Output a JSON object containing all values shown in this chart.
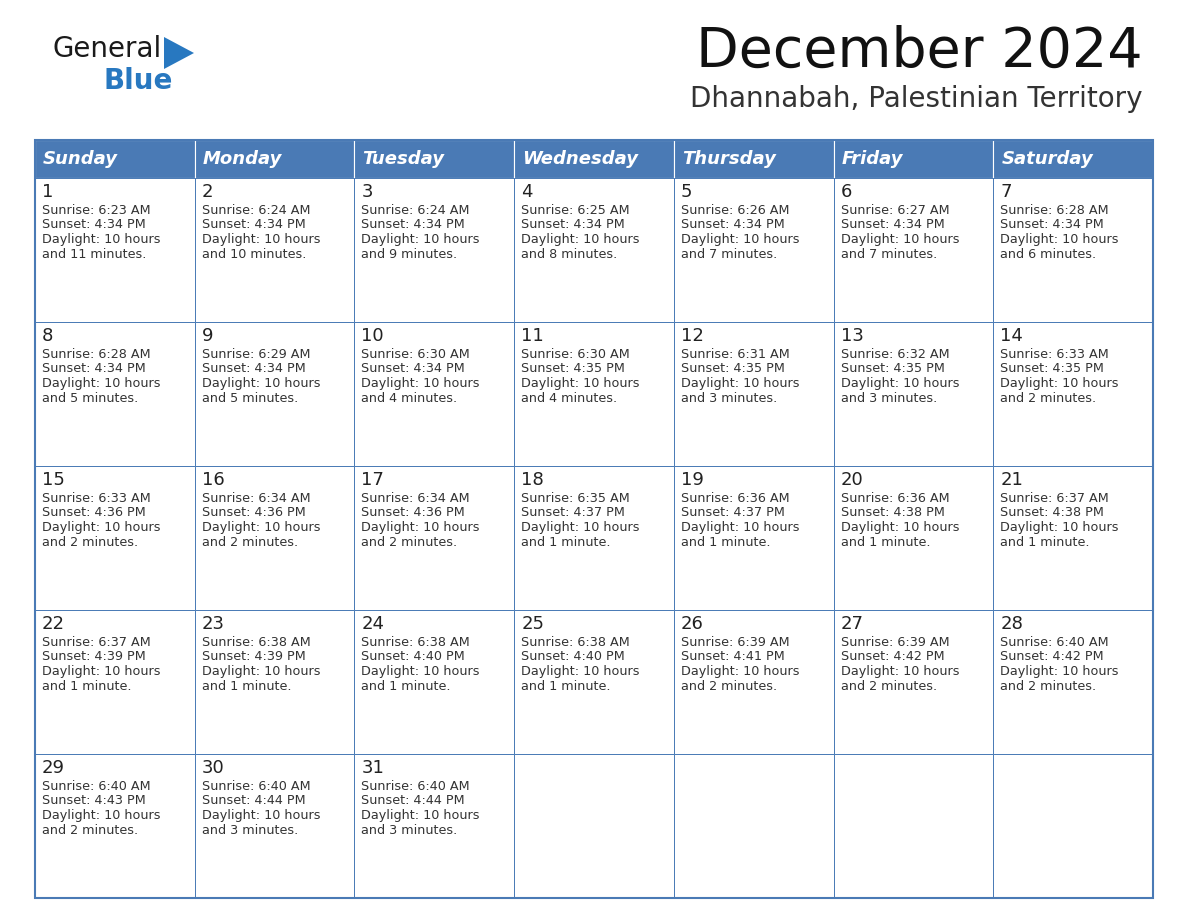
{
  "title": "December 2024",
  "subtitle": "Dhannabah, Palestinian Territory",
  "header_bg": "#4a7ab5",
  "header_text_color": "#FFFFFF",
  "cell_border_color": "#4a7ab5",
  "day_number_color": "#333333",
  "cell_text_color": "#333333",
  "background_color": "#FFFFFF",
  "days_of_week": [
    "Sunday",
    "Monday",
    "Tuesday",
    "Wednesday",
    "Thursday",
    "Friday",
    "Saturday"
  ],
  "calendar": [
    [
      {
        "day": "1",
        "sunrise": "6:23 AM",
        "sunset": "4:34 PM",
        "daylight_line1": "Daylight: 10 hours",
        "daylight_line2": "and 11 minutes."
      },
      {
        "day": "2",
        "sunrise": "6:24 AM",
        "sunset": "4:34 PM",
        "daylight_line1": "Daylight: 10 hours",
        "daylight_line2": "and 10 minutes."
      },
      {
        "day": "3",
        "sunrise": "6:24 AM",
        "sunset": "4:34 PM",
        "daylight_line1": "Daylight: 10 hours",
        "daylight_line2": "and 9 minutes."
      },
      {
        "day": "4",
        "sunrise": "6:25 AM",
        "sunset": "4:34 PM",
        "daylight_line1": "Daylight: 10 hours",
        "daylight_line2": "and 8 minutes."
      },
      {
        "day": "5",
        "sunrise": "6:26 AM",
        "sunset": "4:34 PM",
        "daylight_line1": "Daylight: 10 hours",
        "daylight_line2": "and 7 minutes."
      },
      {
        "day": "6",
        "sunrise": "6:27 AM",
        "sunset": "4:34 PM",
        "daylight_line1": "Daylight: 10 hours",
        "daylight_line2": "and 7 minutes."
      },
      {
        "day": "7",
        "sunrise": "6:28 AM",
        "sunset": "4:34 PM",
        "daylight_line1": "Daylight: 10 hours",
        "daylight_line2": "and 6 minutes."
      }
    ],
    [
      {
        "day": "8",
        "sunrise": "6:28 AM",
        "sunset": "4:34 PM",
        "daylight_line1": "Daylight: 10 hours",
        "daylight_line2": "and 5 minutes."
      },
      {
        "day": "9",
        "sunrise": "6:29 AM",
        "sunset": "4:34 PM",
        "daylight_line1": "Daylight: 10 hours",
        "daylight_line2": "and 5 minutes."
      },
      {
        "day": "10",
        "sunrise": "6:30 AM",
        "sunset": "4:34 PM",
        "daylight_line1": "Daylight: 10 hours",
        "daylight_line2": "and 4 minutes."
      },
      {
        "day": "11",
        "sunrise": "6:30 AM",
        "sunset": "4:35 PM",
        "daylight_line1": "Daylight: 10 hours",
        "daylight_line2": "and 4 minutes."
      },
      {
        "day": "12",
        "sunrise": "6:31 AM",
        "sunset": "4:35 PM",
        "daylight_line1": "Daylight: 10 hours",
        "daylight_line2": "and 3 minutes."
      },
      {
        "day": "13",
        "sunrise": "6:32 AM",
        "sunset": "4:35 PM",
        "daylight_line1": "Daylight: 10 hours",
        "daylight_line2": "and 3 minutes."
      },
      {
        "day": "14",
        "sunrise": "6:33 AM",
        "sunset": "4:35 PM",
        "daylight_line1": "Daylight: 10 hours",
        "daylight_line2": "and 2 minutes."
      }
    ],
    [
      {
        "day": "15",
        "sunrise": "6:33 AM",
        "sunset": "4:36 PM",
        "daylight_line1": "Daylight: 10 hours",
        "daylight_line2": "and 2 minutes."
      },
      {
        "day": "16",
        "sunrise": "6:34 AM",
        "sunset": "4:36 PM",
        "daylight_line1": "Daylight: 10 hours",
        "daylight_line2": "and 2 minutes."
      },
      {
        "day": "17",
        "sunrise": "6:34 AM",
        "sunset": "4:36 PM",
        "daylight_line1": "Daylight: 10 hours",
        "daylight_line2": "and 2 minutes."
      },
      {
        "day": "18",
        "sunrise": "6:35 AM",
        "sunset": "4:37 PM",
        "daylight_line1": "Daylight: 10 hours",
        "daylight_line2": "and 1 minute."
      },
      {
        "day": "19",
        "sunrise": "6:36 AM",
        "sunset": "4:37 PM",
        "daylight_line1": "Daylight: 10 hours",
        "daylight_line2": "and 1 minute."
      },
      {
        "day": "20",
        "sunrise": "6:36 AM",
        "sunset": "4:38 PM",
        "daylight_line1": "Daylight: 10 hours",
        "daylight_line2": "and 1 minute."
      },
      {
        "day": "21",
        "sunrise": "6:37 AM",
        "sunset": "4:38 PM",
        "daylight_line1": "Daylight: 10 hours",
        "daylight_line2": "and 1 minute."
      }
    ],
    [
      {
        "day": "22",
        "sunrise": "6:37 AM",
        "sunset": "4:39 PM",
        "daylight_line1": "Daylight: 10 hours",
        "daylight_line2": "and 1 minute."
      },
      {
        "day": "23",
        "sunrise": "6:38 AM",
        "sunset": "4:39 PM",
        "daylight_line1": "Daylight: 10 hours",
        "daylight_line2": "and 1 minute."
      },
      {
        "day": "24",
        "sunrise": "6:38 AM",
        "sunset": "4:40 PM",
        "daylight_line1": "Daylight: 10 hours",
        "daylight_line2": "and 1 minute."
      },
      {
        "day": "25",
        "sunrise": "6:38 AM",
        "sunset": "4:40 PM",
        "daylight_line1": "Daylight: 10 hours",
        "daylight_line2": "and 1 minute."
      },
      {
        "day": "26",
        "sunrise": "6:39 AM",
        "sunset": "4:41 PM",
        "daylight_line1": "Daylight: 10 hours",
        "daylight_line2": "and 2 minutes."
      },
      {
        "day": "27",
        "sunrise": "6:39 AM",
        "sunset": "4:42 PM",
        "daylight_line1": "Daylight: 10 hours",
        "daylight_line2": "and 2 minutes."
      },
      {
        "day": "28",
        "sunrise": "6:40 AM",
        "sunset": "4:42 PM",
        "daylight_line1": "Daylight: 10 hours",
        "daylight_line2": "and 2 minutes."
      }
    ],
    [
      {
        "day": "29",
        "sunrise": "6:40 AM",
        "sunset": "4:43 PM",
        "daylight_line1": "Daylight: 10 hours",
        "daylight_line2": "and 2 minutes."
      },
      {
        "day": "30",
        "sunrise": "6:40 AM",
        "sunset": "4:44 PM",
        "daylight_line1": "Daylight: 10 hours",
        "daylight_line2": "and 3 minutes."
      },
      {
        "day": "31",
        "sunrise": "6:40 AM",
        "sunset": "4:44 PM",
        "daylight_line1": "Daylight: 10 hours",
        "daylight_line2": "and 3 minutes."
      },
      null,
      null,
      null,
      null
    ]
  ]
}
